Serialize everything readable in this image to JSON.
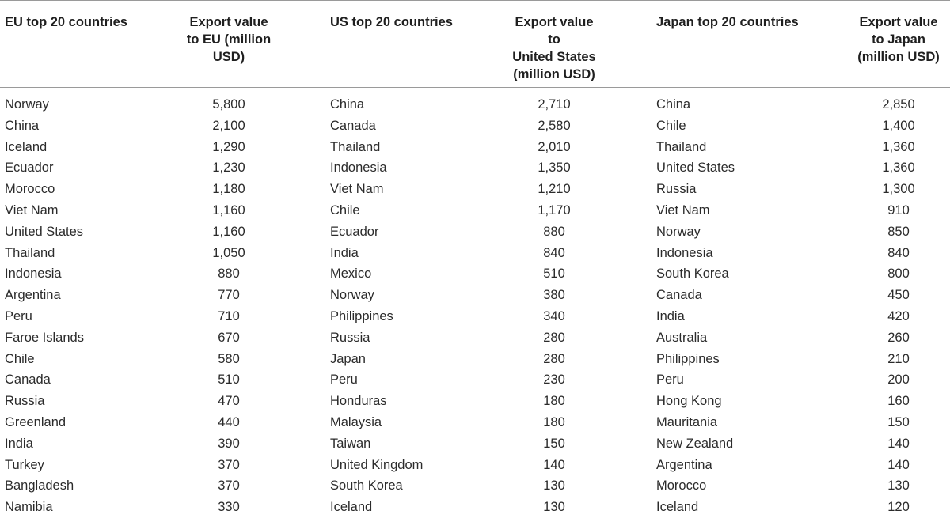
{
  "headers": {
    "eu_country": "EU top 20 countries",
    "eu_value": "Export value\nto EU (million\nUSD)",
    "us_country": "US top 20 countries",
    "us_value": "Export value\nto\nUnited States\n(million USD)",
    "jp_country": "Japan top 20 countries",
    "jp_value": "Export value\nto Japan\n(million USD)"
  },
  "rows": [
    {
      "eu_country": "Norway",
      "eu_value": "5,800",
      "us_country": "China",
      "us_value": "2,710",
      "jp_country": "China",
      "jp_value": "2,850"
    },
    {
      "eu_country": "China",
      "eu_value": "2,100",
      "us_country": "Canada",
      "us_value": "2,580",
      "jp_country": "Chile",
      "jp_value": "1,400"
    },
    {
      "eu_country": "Iceland",
      "eu_value": "1,290",
      "us_country": "Thailand",
      "us_value": "2,010",
      "jp_country": "Thailand",
      "jp_value": "1,360"
    },
    {
      "eu_country": "Ecuador",
      "eu_value": "1,230",
      "us_country": "Indonesia",
      "us_value": "1,350",
      "jp_country": "United States",
      "jp_value": "1,360"
    },
    {
      "eu_country": "Morocco",
      "eu_value": "1,180",
      "us_country": "Viet Nam",
      "us_value": "1,210",
      "jp_country": "Russia",
      "jp_value": "1,300"
    },
    {
      "eu_country": "Viet Nam",
      "eu_value": "1,160",
      "us_country": "Chile",
      "us_value": "1,170",
      "jp_country": "Viet Nam",
      "jp_value": "910"
    },
    {
      "eu_country": "United States",
      "eu_value": "1,160",
      "us_country": "Ecuador",
      "us_value": "880",
      "jp_country": "Norway",
      "jp_value": "850"
    },
    {
      "eu_country": "Thailand",
      "eu_value": "1,050",
      "us_country": "India",
      "us_value": "840",
      "jp_country": "Indonesia",
      "jp_value": "840"
    },
    {
      "eu_country": "Indonesia",
      "eu_value": "880",
      "us_country": "Mexico",
      "us_value": "510",
      "jp_country": "South Korea",
      "jp_value": "800"
    },
    {
      "eu_country": "Argentina",
      "eu_value": "770",
      "us_country": "Norway",
      "us_value": "380",
      "jp_country": "Canada",
      "jp_value": "450"
    },
    {
      "eu_country": "Peru",
      "eu_value": "710",
      "us_country": "Philippines",
      "us_value": "340",
      "jp_country": "India",
      "jp_value": "420"
    },
    {
      "eu_country": "Faroe Islands",
      "eu_value": "670",
      "us_country": "Russia",
      "us_value": "280",
      "jp_country": "Australia",
      "jp_value": "260"
    },
    {
      "eu_country": "Chile",
      "eu_value": "580",
      "us_country": "Japan",
      "us_value": "280",
      "jp_country": "Philippines",
      "jp_value": "210"
    },
    {
      "eu_country": "Canada",
      "eu_value": "510",
      "us_country": "Peru",
      "us_value": "230",
      "jp_country": "Peru",
      "jp_value": "200"
    },
    {
      "eu_country": "Russia",
      "eu_value": "470",
      "us_country": "Honduras",
      "us_value": "180",
      "jp_country": "Hong Kong",
      "jp_value": "160"
    },
    {
      "eu_country": "Greenland",
      "eu_value": "440",
      "us_country": "Malaysia",
      "us_value": "180",
      "jp_country": "Mauritania",
      "jp_value": "150"
    },
    {
      "eu_country": "India",
      "eu_value": "390",
      "us_country": "Taiwan",
      "us_value": "150",
      "jp_country": "New Zealand",
      "jp_value": "140"
    },
    {
      "eu_country": "Turkey",
      "eu_value": "370",
      "us_country": "United Kingdom",
      "us_value": "140",
      "jp_country": "Argentina",
      "jp_value": "140"
    },
    {
      "eu_country": "Bangladesh",
      "eu_value": "370",
      "us_country": "South Korea",
      "us_value": "130",
      "jp_country": "Morocco",
      "jp_value": "130"
    },
    {
      "eu_country": "Namibia",
      "eu_value": "330",
      "us_country": "Iceland",
      "us_value": "130",
      "jp_country": "Iceland",
      "jp_value": "120"
    }
  ]
}
